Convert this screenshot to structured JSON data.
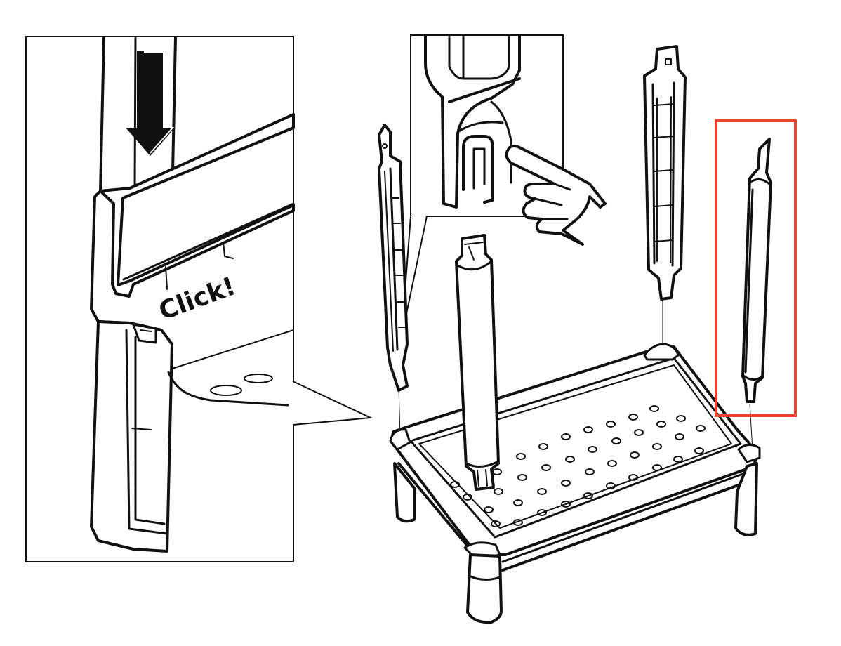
{
  "diagram": {
    "callout_text": "Click!",
    "step_arrow_icon": "down-arrow-icon",
    "hand_icon": "pointing-hand-icon",
    "colors": {
      "line": "#111111",
      "fill": "#ffffff",
      "highlight": "#e8452c"
    }
  }
}
